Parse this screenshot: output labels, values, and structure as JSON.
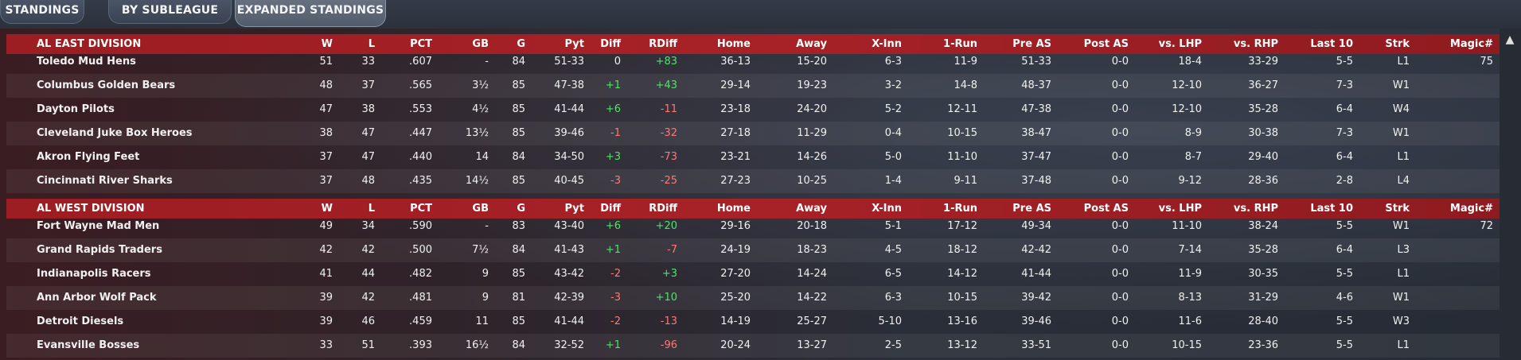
{
  "tabs": [
    {
      "label": "STANDINGS"
    },
    {
      "label": "BY SUBLEAGUE"
    },
    {
      "label": "EXPANDED STANDINGS"
    }
  ],
  "columns": [
    "W",
    "L",
    "PCT",
    "GB",
    "G",
    "Pyt",
    "Diff",
    "RDiff",
    "Home",
    "Away",
    "X-Inn",
    "1-Run",
    "Pre AS",
    "Post AS",
    "vs. LHP",
    "vs. RHP",
    "Last 10",
    "Strk",
    "Magic#"
  ],
  "divisions": [
    {
      "name": "AL EAST DIVISION",
      "teams": [
        {
          "team": "Toledo  Mud Hens",
          "W": "51",
          "L": "33",
          "PCT": ".607",
          "GB": "-",
          "G": "84",
          "Pyt": "51-33",
          "Diff": "0",
          "RDiff": "+83",
          "Home": "36-13",
          "Away": "15-20",
          "XInn": "6-3",
          "OneRun": "11-9",
          "PreAS": "51-33",
          "PostAS": "0-0",
          "vsLHP": "18-4",
          "vsRHP": "33-29",
          "Last10": "5-5",
          "Strk": "L1",
          "Magic": "75"
        },
        {
          "team": "Columbus Golden Bears",
          "W": "48",
          "L": "37",
          "PCT": ".565",
          "GB": "3½",
          "G": "85",
          "Pyt": "47-38",
          "Diff": "+1",
          "RDiff": "+43",
          "Home": "29-14",
          "Away": "19-23",
          "XInn": "3-2",
          "OneRun": "14-8",
          "PreAS": "48-37",
          "PostAS": "0-0",
          "vsLHP": "12-10",
          "vsRHP": "36-27",
          "Last10": "7-3",
          "Strk": "W1",
          "Magic": ""
        },
        {
          "team": "Dayton Pilots",
          "W": "47",
          "L": "38",
          "PCT": ".553",
          "GB": "4½",
          "G": "85",
          "Pyt": "41-44",
          "Diff": "+6",
          "RDiff": "-11",
          "Home": "23-18",
          "Away": "24-20",
          "XInn": "5-2",
          "OneRun": "12-11",
          "PreAS": "47-38",
          "PostAS": "0-0",
          "vsLHP": "12-10",
          "vsRHP": "35-28",
          "Last10": "6-4",
          "Strk": "W4",
          "Magic": ""
        },
        {
          "team": "Cleveland Juke Box Heroes",
          "W": "38",
          "L": "47",
          "PCT": ".447",
          "GB": "13½",
          "G": "85",
          "Pyt": "39-46",
          "Diff": "-1",
          "RDiff": "-32",
          "Home": "27-18",
          "Away": "11-29",
          "XInn": "0-4",
          "OneRun": "10-15",
          "PreAS": "38-47",
          "PostAS": "0-0",
          "vsLHP": "8-9",
          "vsRHP": "30-38",
          "Last10": "7-3",
          "Strk": "W1",
          "Magic": ""
        },
        {
          "team": "Akron  Flying Feet",
          "W": "37",
          "L": "47",
          "PCT": ".440",
          "GB": "14",
          "G": "84",
          "Pyt": "34-50",
          "Diff": "+3",
          "RDiff": "-73",
          "Home": "23-21",
          "Away": "14-26",
          "XInn": "5-0",
          "OneRun": "11-10",
          "PreAS": "37-47",
          "PostAS": "0-0",
          "vsLHP": "8-7",
          "vsRHP": "29-40",
          "Last10": "6-4",
          "Strk": "L1",
          "Magic": ""
        },
        {
          "team": "Cincinnati River Sharks",
          "W": "37",
          "L": "48",
          "PCT": ".435",
          "GB": "14½",
          "G": "85",
          "Pyt": "40-45",
          "Diff": "-3",
          "RDiff": "-25",
          "Home": "27-23",
          "Away": "10-25",
          "XInn": "1-4",
          "OneRun": "9-11",
          "PreAS": "37-48",
          "PostAS": "0-0",
          "vsLHP": "9-12",
          "vsRHP": "28-36",
          "Last10": "2-8",
          "Strk": "L4",
          "Magic": ""
        }
      ]
    },
    {
      "name": "AL WEST DIVISION",
      "teams": [
        {
          "team": "Fort Wayne Mad Men",
          "W": "49",
          "L": "34",
          "PCT": ".590",
          "GB": "-",
          "G": "83",
          "Pyt": "43-40",
          "Diff": "+6",
          "RDiff": "+20",
          "Home": "29-16",
          "Away": "20-18",
          "XInn": "5-1",
          "OneRun": "17-12",
          "PreAS": "49-34",
          "PostAS": "0-0",
          "vsLHP": "11-10",
          "vsRHP": "38-24",
          "Last10": "5-5",
          "Strk": "W1",
          "Magic": "72"
        },
        {
          "team": "Grand Rapids Traders",
          "W": "42",
          "L": "42",
          "PCT": ".500",
          "GB": "7½",
          "G": "84",
          "Pyt": "41-43",
          "Diff": "+1",
          "RDiff": "-7",
          "Home": "24-19",
          "Away": "18-23",
          "XInn": "4-5",
          "OneRun": "18-12",
          "PreAS": "42-42",
          "PostAS": "0-0",
          "vsLHP": "7-14",
          "vsRHP": "35-28",
          "Last10": "6-4",
          "Strk": "L3",
          "Magic": ""
        },
        {
          "team": "Indianapolis Racers",
          "W": "41",
          "L": "44",
          "PCT": ".482",
          "GB": "9",
          "G": "85",
          "Pyt": "43-42",
          "Diff": "-2",
          "RDiff": "+3",
          "Home": "27-20",
          "Away": "14-24",
          "XInn": "6-5",
          "OneRun": "14-12",
          "PreAS": "41-44",
          "PostAS": "0-0",
          "vsLHP": "11-9",
          "vsRHP": "30-35",
          "Last10": "5-5",
          "Strk": "L1",
          "Magic": ""
        },
        {
          "team": "Ann Arbor Wolf Pack",
          "W": "39",
          "L": "42",
          "PCT": ".481",
          "GB": "9",
          "G": "81",
          "Pyt": "42-39",
          "Diff": "-3",
          "RDiff": "+10",
          "Home": "25-20",
          "Away": "14-22",
          "XInn": "6-3",
          "OneRun": "10-15",
          "PreAS": "39-42",
          "PostAS": "0-0",
          "vsLHP": "8-13",
          "vsRHP": "31-29",
          "Last10": "4-6",
          "Strk": "W1",
          "Magic": ""
        },
        {
          "team": "Detroit Diesels",
          "W": "39",
          "L": "46",
          "PCT": ".459",
          "GB": "11",
          "G": "85",
          "Pyt": "41-44",
          "Diff": "-2",
          "RDiff": "-13",
          "Home": "14-19",
          "Away": "25-27",
          "XInn": "5-10",
          "OneRun": "13-16",
          "PreAS": "39-46",
          "PostAS": "0-0",
          "vsLHP": "11-6",
          "vsRHP": "28-40",
          "Last10": "5-5",
          "Strk": "W3",
          "Magic": ""
        },
        {
          "team": "Evansville Bosses",
          "W": "33",
          "L": "51",
          "PCT": ".393",
          "GB": "16½",
          "G": "84",
          "Pyt": "32-52",
          "Diff": "+1",
          "RDiff": "-96",
          "Home": "20-24",
          "Away": "13-27",
          "XInn": "2-5",
          "OneRun": "13-12",
          "PreAS": "33-51",
          "PostAS": "0-0",
          "vsLHP": "10-15",
          "vsRHP": "23-36",
          "Last10": "5-5",
          "Strk": "L1",
          "Magic": ""
        }
      ]
    }
  ],
  "scroll_up_glyph": "▲",
  "colors": {
    "header_red": "#a72227",
    "positive": "#4fe36a",
    "negative": "#ff7777"
  }
}
